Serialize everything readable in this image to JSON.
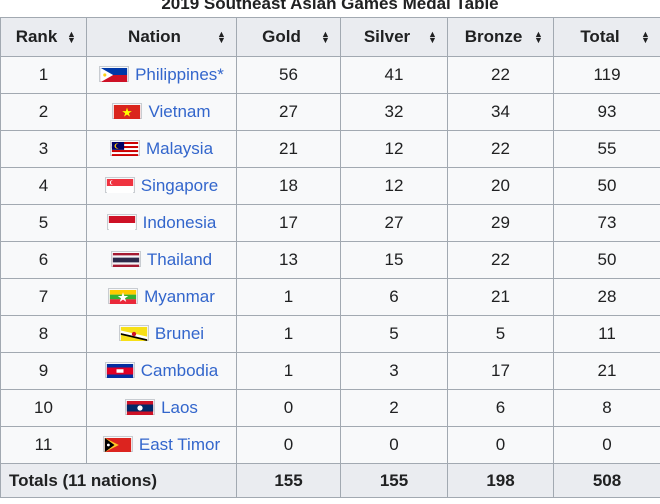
{
  "table": {
    "title": "2019 Southeast Asian Games Medal Table",
    "headers": {
      "rank": "Rank",
      "nation": "Nation",
      "gold": "Gold",
      "silver": "Silver",
      "bronze": "Bronze",
      "total": "Total"
    },
    "colors": {
      "gold": "#f7d41f",
      "silver": "#cccccc",
      "bronze": "#cc9966",
      "host": "#ccccff",
      "link": "#3366cc"
    },
    "rows": [
      {
        "rank": "1",
        "nation": "Philippines*",
        "flag": "philippines-flag-icon",
        "gold": "56",
        "silver": "41",
        "bronze": "22",
        "total": "119"
      },
      {
        "rank": "2",
        "nation": "Vietnam",
        "flag": "vietnam-flag-icon",
        "gold": "27",
        "silver": "32",
        "bronze": "34",
        "total": "93"
      },
      {
        "rank": "3",
        "nation": "Malaysia",
        "flag": "malaysia-flag-icon",
        "gold": "21",
        "silver": "12",
        "bronze": "22",
        "total": "55"
      },
      {
        "rank": "4",
        "nation": "Singapore",
        "flag": "singapore-flag-icon",
        "gold": "18",
        "silver": "12",
        "bronze": "20",
        "total": "50"
      },
      {
        "rank": "5",
        "nation": "Indonesia",
        "flag": "indonesia-flag-icon",
        "gold": "17",
        "silver": "27",
        "bronze": "29",
        "total": "73"
      },
      {
        "rank": "6",
        "nation": "Thailand",
        "flag": "thailand-flag-icon",
        "gold": "13",
        "silver": "15",
        "bronze": "22",
        "total": "50"
      },
      {
        "rank": "7",
        "nation": "Myanmar",
        "flag": "myanmar-flag-icon",
        "gold": "1",
        "silver": "6",
        "bronze": "21",
        "total": "28"
      },
      {
        "rank": "8",
        "nation": "Brunei",
        "flag": "brunei-flag-icon",
        "gold": "1",
        "silver": "5",
        "bronze": "5",
        "total": "11"
      },
      {
        "rank": "9",
        "nation": "Cambodia",
        "flag": "cambodia-flag-icon",
        "gold": "1",
        "silver": "3",
        "bronze": "17",
        "total": "21"
      },
      {
        "rank": "10",
        "nation": "Laos",
        "flag": "laos-flag-icon",
        "gold": "0",
        "silver": "2",
        "bronze": "6",
        "total": "8"
      },
      {
        "rank": "11",
        "nation": "East Timor",
        "flag": "east-timor-flag-icon",
        "gold": "0",
        "silver": "0",
        "bronze": "0",
        "total": "0"
      }
    ],
    "totals": {
      "label": "Totals (11 nations)",
      "gold": "155",
      "silver": "155",
      "bronze": "198",
      "total": "508"
    }
  }
}
